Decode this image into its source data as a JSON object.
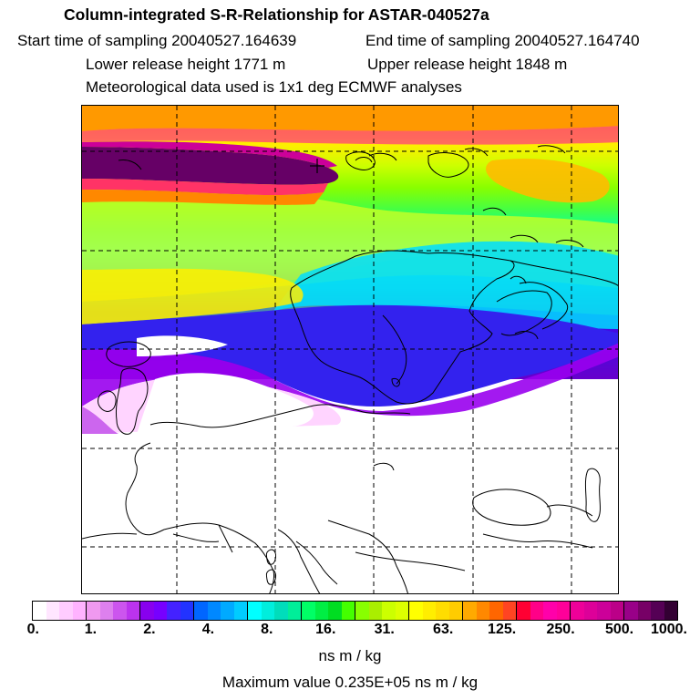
{
  "header": {
    "title": "Column-integrated S-R-Relationship for ASTAR-040527a",
    "start_time": "Start time of sampling 20040527.164639",
    "end_time": "End time of sampling 20040527.164740",
    "lower_release": "Lower release height 1771 m",
    "upper_release": "Upper release height 1848 m",
    "meteo": "Meteorological data used is 1x1 deg ECMWF analyses"
  },
  "legend": {
    "tick_labels": [
      "0.",
      "1.",
      "2.",
      "4.",
      "8.",
      "16.",
      "31.",
      "63.",
      "125.",
      "250.",
      "500.",
      "1000."
    ],
    "units": "ns m / kg",
    "colors": [
      "#ffffff",
      "#ffe6ff",
      "#ffccff",
      "#ffb3ff",
      "#f099f0",
      "#dd80ee",
      "#cc55ee",
      "#bb33ee",
      "#8800ee",
      "#7700ff",
      "#4422ff",
      "#2233ff",
      "#0066ff",
      "#0088ff",
      "#00aaff",
      "#00ccff",
      "#00ffff",
      "#00eedd",
      "#00ddbb",
      "#00ee99",
      "#00ff66",
      "#00ee44",
      "#00dd22",
      "#44ff00",
      "#88ff00",
      "#aaee00",
      "#ccff00",
      "#ddff00",
      "#ffff00",
      "#ffee00",
      "#ffdd00",
      "#ffcc00",
      "#ffaa00",
      "#ff8800",
      "#ff6600",
      "#ff4422",
      "#ff0033",
      "#ff0088",
      "#ff00aa",
      "#ff0099",
      "#ee0099",
      "#dd0099",
      "#cc0099",
      "#bb0088",
      "#990088",
      "#770066",
      "#550055",
      "#330033"
    ]
  },
  "footer": {
    "max_value": "Maximum value  0.235E+05 ns m / kg"
  },
  "map": {
    "release_marker": "release-site-cross"
  }
}
